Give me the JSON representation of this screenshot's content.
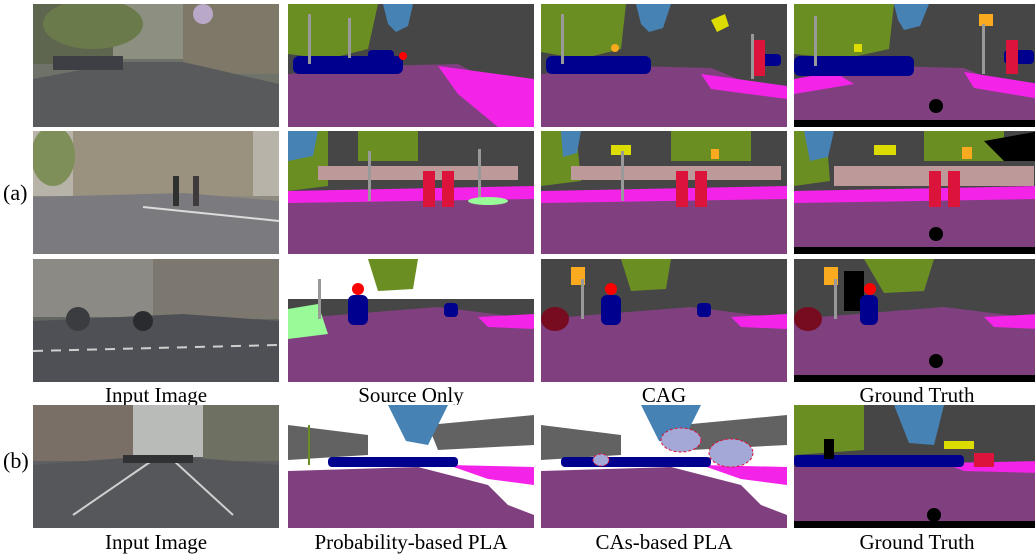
{
  "figure": {
    "row_labels": {
      "a": "(a)",
      "b": "(b)"
    },
    "captions_a": [
      "Input Image",
      "Source Only",
      "CAG",
      "Ground Truth"
    ],
    "captions_b": [
      "Input Image",
      "Probability-based PLA",
      "CAs-based PLA",
      "Ground Truth"
    ]
  },
  "colors": {
    "road": "#804080",
    "sidewalk": "#f423e8",
    "building": "#464646",
    "vegetation": "#6b8e23",
    "sky": "#4682b4",
    "car": "#00008e",
    "person": "#dc143c",
    "rider": "#ff0000",
    "pole": "#999999",
    "traffic_sign": "#dcdc00",
    "traffic_light": "#faaa1e",
    "wall": "#bebe99",
    "fence": "#be9999",
    "terrain": "#98fb98",
    "bicycle": "#770b20",
    "void": "#000000",
    "unlabeled": "#ffffff"
  }
}
